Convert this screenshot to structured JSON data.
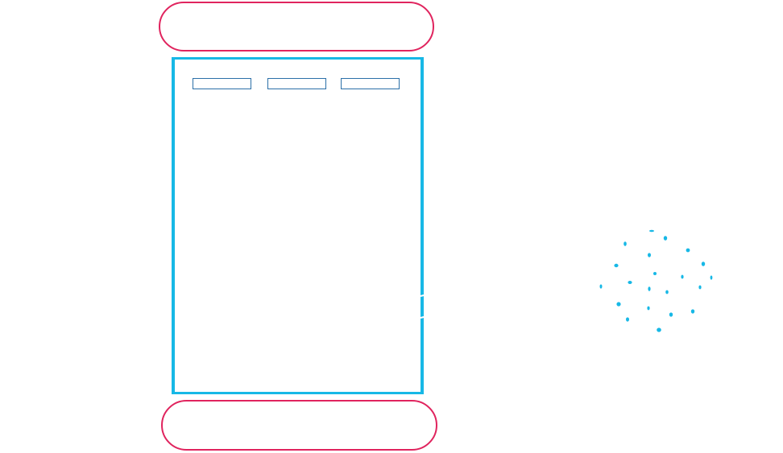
{
  "diagram": {
    "colors": {
      "outline_pink": "#e0245e",
      "frame_cyan": "#17b8e6",
      "tab_blue": "#2b6fa8",
      "background": "#ffffff"
    },
    "header_bar": {
      "label": ""
    },
    "footer_bar": {
      "label": ""
    },
    "tabs": [
      {
        "label": ""
      },
      {
        "label": ""
      },
      {
        "label": ""
      }
    ],
    "decoration": {
      "icon": "spinner-dots-icon"
    }
  }
}
